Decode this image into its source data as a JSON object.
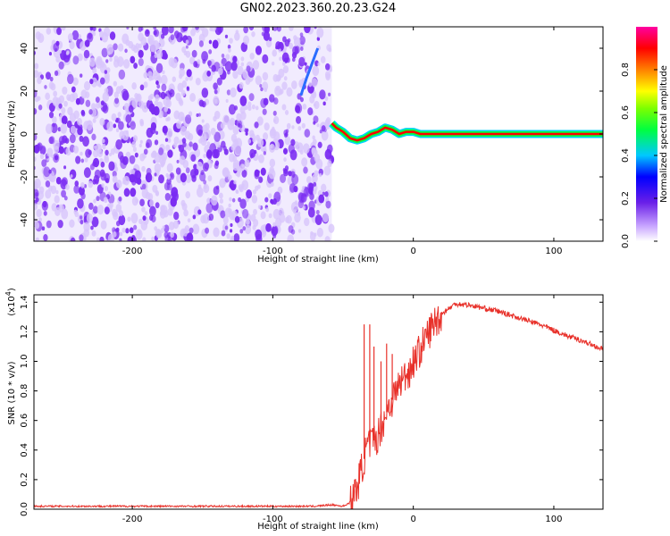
{
  "page": {
    "title": "GN02.2023.360.20.23.G24"
  },
  "colors": {
    "snr_line": "#e8312a",
    "spectrum_cloud": "#7a2bf2",
    "spectrum_light": "#d8c6fb",
    "axes": "#000000"
  },
  "chart_data": [
    {
      "type": "heatmap",
      "title": "GN02.2023.360.20.23.G24",
      "xlabel": "Height of straight line (km)",
      "ylabel": "Frequency (Hz)",
      "xlim": [
        -270,
        135
      ],
      "ylim": [
        -50,
        50
      ],
      "x_ticks": [
        -200,
        -100,
        0,
        100
      ],
      "y_ticks": [
        -40,
        -20,
        0,
        20,
        40
      ],
      "x_tick_labels": [
        "-200",
        "-100",
        "0",
        "100"
      ],
      "y_tick_labels": [
        "-40",
        "-20",
        "0",
        "20",
        "40"
      ],
      "noise_region_x": [
        -270,
        -58
      ],
      "signal_track": {
        "x": [
          -58,
          -55,
          -50,
          -45,
          -40,
          -35,
          -30,
          -25,
          -20,
          -15,
          -10,
          -5,
          0,
          5,
          10,
          15,
          135
        ],
        "y": [
          5,
          3,
          1,
          -2,
          -3,
          -2,
          0,
          1,
          3,
          2,
          0,
          1,
          1,
          0,
          0,
          0,
          0
        ]
      },
      "faint_track": {
        "x": [
          -80,
          -76,
          -72,
          -68
        ],
        "y": [
          18,
          26,
          33,
          40
        ]
      },
      "colorbar": {
        "label": "Normalized spectral amplitude",
        "range": [
          0.0,
          1.0
        ],
        "ticks": [
          0.0,
          0.2,
          0.4,
          0.6,
          0.8
        ],
        "tick_labels": [
          "0.0",
          "0.2",
          "0.4",
          "0.6",
          "0.8"
        ]
      }
    },
    {
      "type": "line",
      "xlabel": "Height of straight line (km)",
      "ylabel": "SNR (10 * v/v)",
      "scale_label": "(x10",
      "scale_exponent": "4",
      "scale_close": ")",
      "xlim": [
        -270,
        135
      ],
      "ylim": [
        0.0,
        1.45
      ],
      "x_ticks": [
        -200,
        -100,
        0,
        100
      ],
      "y_ticks": [
        0.0,
        0.2,
        0.4,
        0.6,
        0.8,
        1.0,
        1.2,
        1.4
      ],
      "x_tick_labels": [
        "-200",
        "-100",
        "0",
        "100"
      ],
      "y_tick_labels": [
        "0.0",
        "0.2",
        "0.4",
        "0.6",
        "0.8",
        "1.0",
        "1.2",
        "1.4"
      ],
      "series": [
        {
          "x": [
            -270,
            -200,
            -120,
            -70,
            -58,
            -50,
            -44,
            -40,
            -36,
            -33,
            -30,
            -26,
            -22,
            -18,
            -14,
            -10,
            -6,
            -2,
            0,
            5,
            10,
            15,
            20,
            30,
            40,
            50,
            60,
            70,
            80,
            90,
            100,
            110,
            120,
            135
          ],
          "y": [
            0.02,
            0.02,
            0.02,
            0.02,
            0.03,
            0.02,
            0.05,
            0.15,
            0.3,
            0.42,
            0.45,
            0.48,
            0.58,
            0.68,
            0.76,
            0.85,
            0.9,
            0.95,
            1.0,
            1.08,
            1.18,
            1.26,
            1.32,
            1.39,
            1.38,
            1.36,
            1.34,
            1.31,
            1.28,
            1.25,
            1.21,
            1.17,
            1.14,
            1.08
          ]
        }
      ],
      "spikes": {
        "x": [
          -35,
          -31,
          -28,
          -23,
          -19,
          -15
        ],
        "y": [
          1.25,
          1.25,
          1.1,
          1.0,
          1.12,
          1.05
        ]
      }
    }
  ]
}
